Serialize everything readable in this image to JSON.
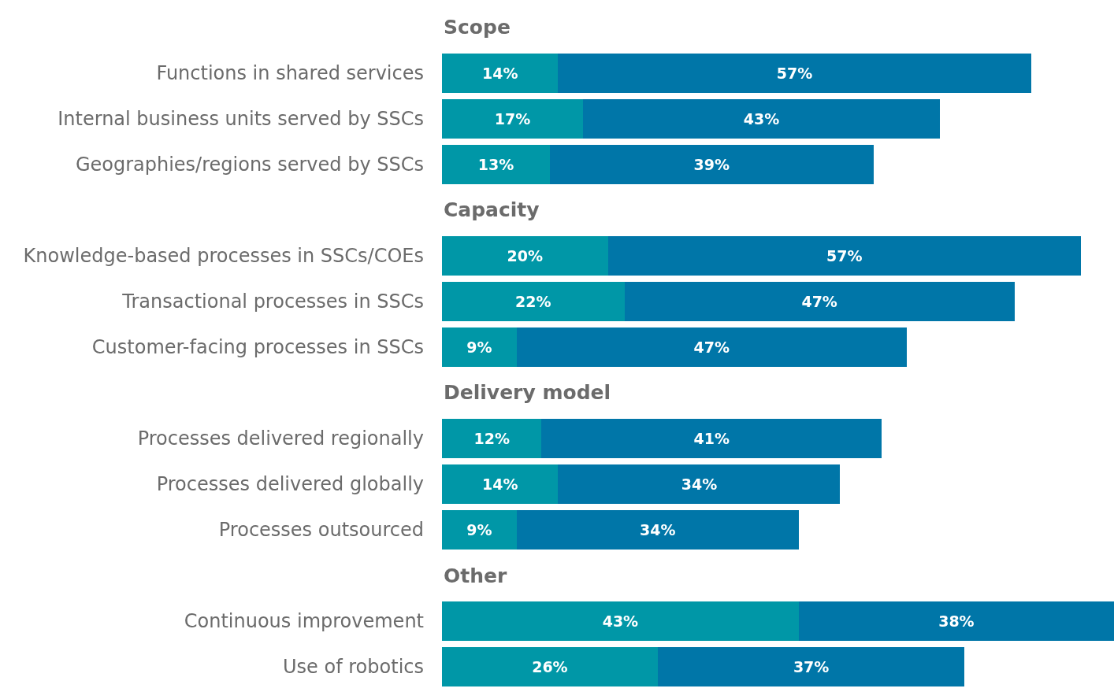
{
  "chart_data": {
    "type": "bar",
    "orientation": "horizontal",
    "stacked": true,
    "legend": false,
    "categories": [
      "Scope",
      "Functions in shared services",
      "Internal business units served by SSCs",
      "Geographies/regions served by SSCs",
      "Capacity",
      "Knowledge-based processes in SSCs/COEs",
      "Transactional processes in SSCs",
      "Customer-facing processes in SSCs",
      "Delivery model",
      "Processes delivered regionally",
      "Processes delivered globally",
      "Processes outsourced",
      "Other",
      "Continuous improvement",
      "Use of robotics"
    ],
    "series": [
      {
        "color": "#0097a7",
        "values": [
          null,
          14,
          17,
          13,
          null,
          20,
          22,
          9,
          null,
          12,
          14,
          9,
          null,
          43,
          26
        ],
        "value_labels": [
          null,
          "14%",
          "17%",
          "13%",
          null,
          "20%",
          "22%",
          "9%",
          null,
          "12%",
          "14%",
          "9%",
          null,
          "43%",
          "26%"
        ]
      },
      {
        "color": "#0076a8",
        "values": [
          null,
          57,
          43,
          39,
          null,
          57,
          47,
          47,
          null,
          41,
          34,
          34,
          null,
          38,
          37
        ],
        "value_labels": [
          null,
          "57%",
          "43%",
          "39%",
          null,
          "57%",
          "47%",
          "47%",
          null,
          "41%",
          "34%",
          "34%",
          null,
          "38%",
          "37%"
        ]
      }
    ]
  }
}
